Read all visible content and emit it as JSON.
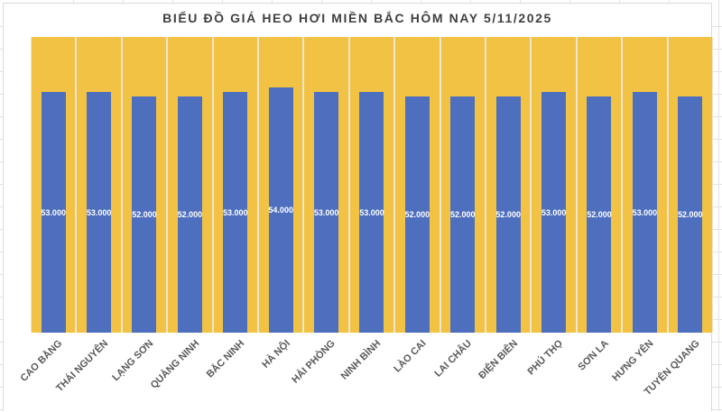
{
  "title": "BIỂU ĐỒ GIÁ HEO HƠI MIỀN BẮC HÔM NAY 5/11/2025",
  "colors": {
    "bar_blue": "#4e6fbe",
    "background_gold": "#f2c245",
    "column_gap": "#efe6cb",
    "title_text": "#3f3f3f",
    "axis_label_text": "#595959",
    "value_label_text": "#ffffff",
    "grid_line": "#e2e2e2",
    "chart_border": "#d9d9d9"
  },
  "chart_data": {
    "type": "bar",
    "title": "BIỂU ĐỒ GIÁ HEO HƠI MIỀN BẮC HÔM NAY 5/11/2025",
    "categories": [
      "CAO BẰNG",
      "THÁI NGUYÊN",
      "LẠNG SƠN",
      "QUẢNG NINH",
      "BẮC NINH",
      "HÀ NỘI",
      "HẢI PHÒNG",
      "NINH BÌNH",
      "LÀO CAI",
      "LAI CHÂU",
      "ĐIỆN BIÊN",
      "PHÚ THỌ",
      "SƠN LA",
      "HƯNG YÊN",
      "TUYÊN QUANG"
    ],
    "values": [
      53000,
      53000,
      52000,
      52000,
      53000,
      54000,
      53000,
      53000,
      52000,
      52000,
      52000,
      53000,
      52000,
      53000,
      52000
    ],
    "value_labels": [
      "53.000",
      "53.000",
      "52.000",
      "52.000",
      "53.000",
      "54.000",
      "53.000",
      "53.000",
      "52.000",
      "52.000",
      "52.000",
      "53.000",
      "52.000",
      "53.000",
      "52.000"
    ],
    "xlabel": "",
    "ylabel": "",
    "ylim": [
      0,
      65000
    ],
    "background_series_value": 65000,
    "grid": false,
    "legend_position": "none",
    "value_label_position": "inside-center",
    "x_tick_rotation_deg": 45
  }
}
